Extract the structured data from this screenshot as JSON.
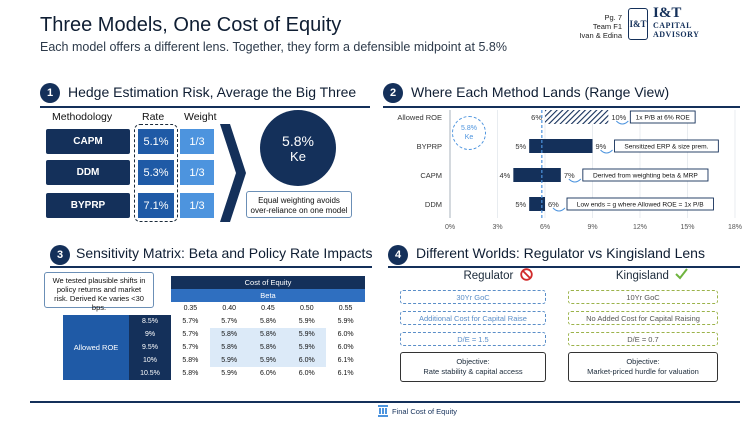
{
  "header": {
    "title": "Three Models, One Cost of Equity",
    "subtitle": "Each model offers a different lens. Together, they form a defensible midpoint at 5.8%",
    "page": "Pg. 7",
    "team": "Team F1",
    "authors": "Ivan & Edina",
    "logo_mark": "I&T",
    "logo_line1": "I&T",
    "logo_line2": "CAPITAL",
    "logo_line3": "ADVISORY"
  },
  "section1": {
    "num": "1",
    "title": "Hedge Estimation Risk, Average the Big Three",
    "col_method": "Methodology",
    "col_rate": "Rate",
    "col_weight": "Weight",
    "rows": [
      {
        "method": "CAPM",
        "rate": "5.1%",
        "weight": "1/3"
      },
      {
        "method": "DDM",
        "rate": "5.3%",
        "weight": "1/3"
      },
      {
        "method": "BYPRP",
        "rate": "7.1%",
        "weight": "1/3"
      }
    ],
    "result_value": "5.8%",
    "result_label": "Ke",
    "note": "Equal weighting avoids over-reliance on one model"
  },
  "section2": {
    "num": "2",
    "title": "Where Each Method Lands (Range View)",
    "marker_value": "5.8%",
    "marker_label": "Ke",
    "x_ticks": [
      "0%",
      "3%",
      "6%",
      "9%",
      "12%",
      "15%",
      "18%"
    ]
  },
  "chart_data": {
    "type": "bar",
    "categories": [
      "Allowed ROE",
      "BYPRP",
      "CAPM",
      "DDM"
    ],
    "ranges": [
      [
        6,
        10
      ],
      [
        5,
        9
      ],
      [
        4,
        7
      ],
      [
        5,
        6
      ]
    ],
    "low_labels": [
      "6%",
      "5%",
      "4%",
      "5%"
    ],
    "high_labels": [
      "10%",
      "9%",
      "7%",
      "6%"
    ],
    "annotations": [
      "1x P/B at 6% ROE",
      "Sensitized ERP & size prem.",
      "Derived from weighting beta & MRP",
      "Low ends = g where Allowed ROE = 1x P/B"
    ],
    "reference_line": 5.8,
    "xlim": [
      0,
      18
    ],
    "hatched_category": "Allowed ROE",
    "colors": {
      "bar": "#14305a",
      "ref": "#4d94de"
    }
  },
  "section3": {
    "num": "3",
    "title": "Sensitivity Matrix: Beta and Policy Rate Impacts",
    "note": "We tested plausible shifts in policy returns and market risk. Derived Ke varies <30 bps.",
    "table_title": "Cost of Equity",
    "beta_label": "Beta",
    "betas": [
      "0.35",
      "0.40",
      "0.45",
      "0.50",
      "0.55"
    ],
    "row_header": "Allowed ROE",
    "rows": [
      {
        "roe": "8.5%",
        "vals": [
          "5.7%",
          "5.7%",
          "5.8%",
          "5.9%",
          "5.9%"
        ]
      },
      {
        "roe": "9%",
        "vals": [
          "5.7%",
          "5.8%",
          "5.8%",
          "5.9%",
          "6.0%"
        ]
      },
      {
        "roe": "9.5%",
        "vals": [
          "5.7%",
          "5.8%",
          "5.8%",
          "5.9%",
          "6.0%"
        ]
      },
      {
        "roe": "10%",
        "vals": [
          "5.8%",
          "5.9%",
          "5.9%",
          "6.0%",
          "6.1%"
        ]
      },
      {
        "roe": "10.5%",
        "vals": [
          "5.8%",
          "5.9%",
          "6.0%",
          "6.0%",
          "6.1%"
        ]
      }
    ]
  },
  "section4": {
    "num": "4",
    "title": "Different Worlds: Regulator vs Kingisland Lens",
    "regulator": {
      "name": "Regulator",
      "items": [
        "30Yr GoC",
        "Additional Cost for Capital Raise",
        "D/E = 1.5"
      ],
      "objective_label": "Objective:",
      "objective": "Rate stability & capital access"
    },
    "kingisland": {
      "name": "Kingisland",
      "items": [
        "10Yr GoC",
        "No Added Cost for Capital Raising",
        "D/E = 0.7"
      ],
      "objective_label": "Objective:",
      "objective": "Market-priced hurdle for valuation"
    }
  },
  "footer": {
    "label": "Final Cost of Equity"
  }
}
